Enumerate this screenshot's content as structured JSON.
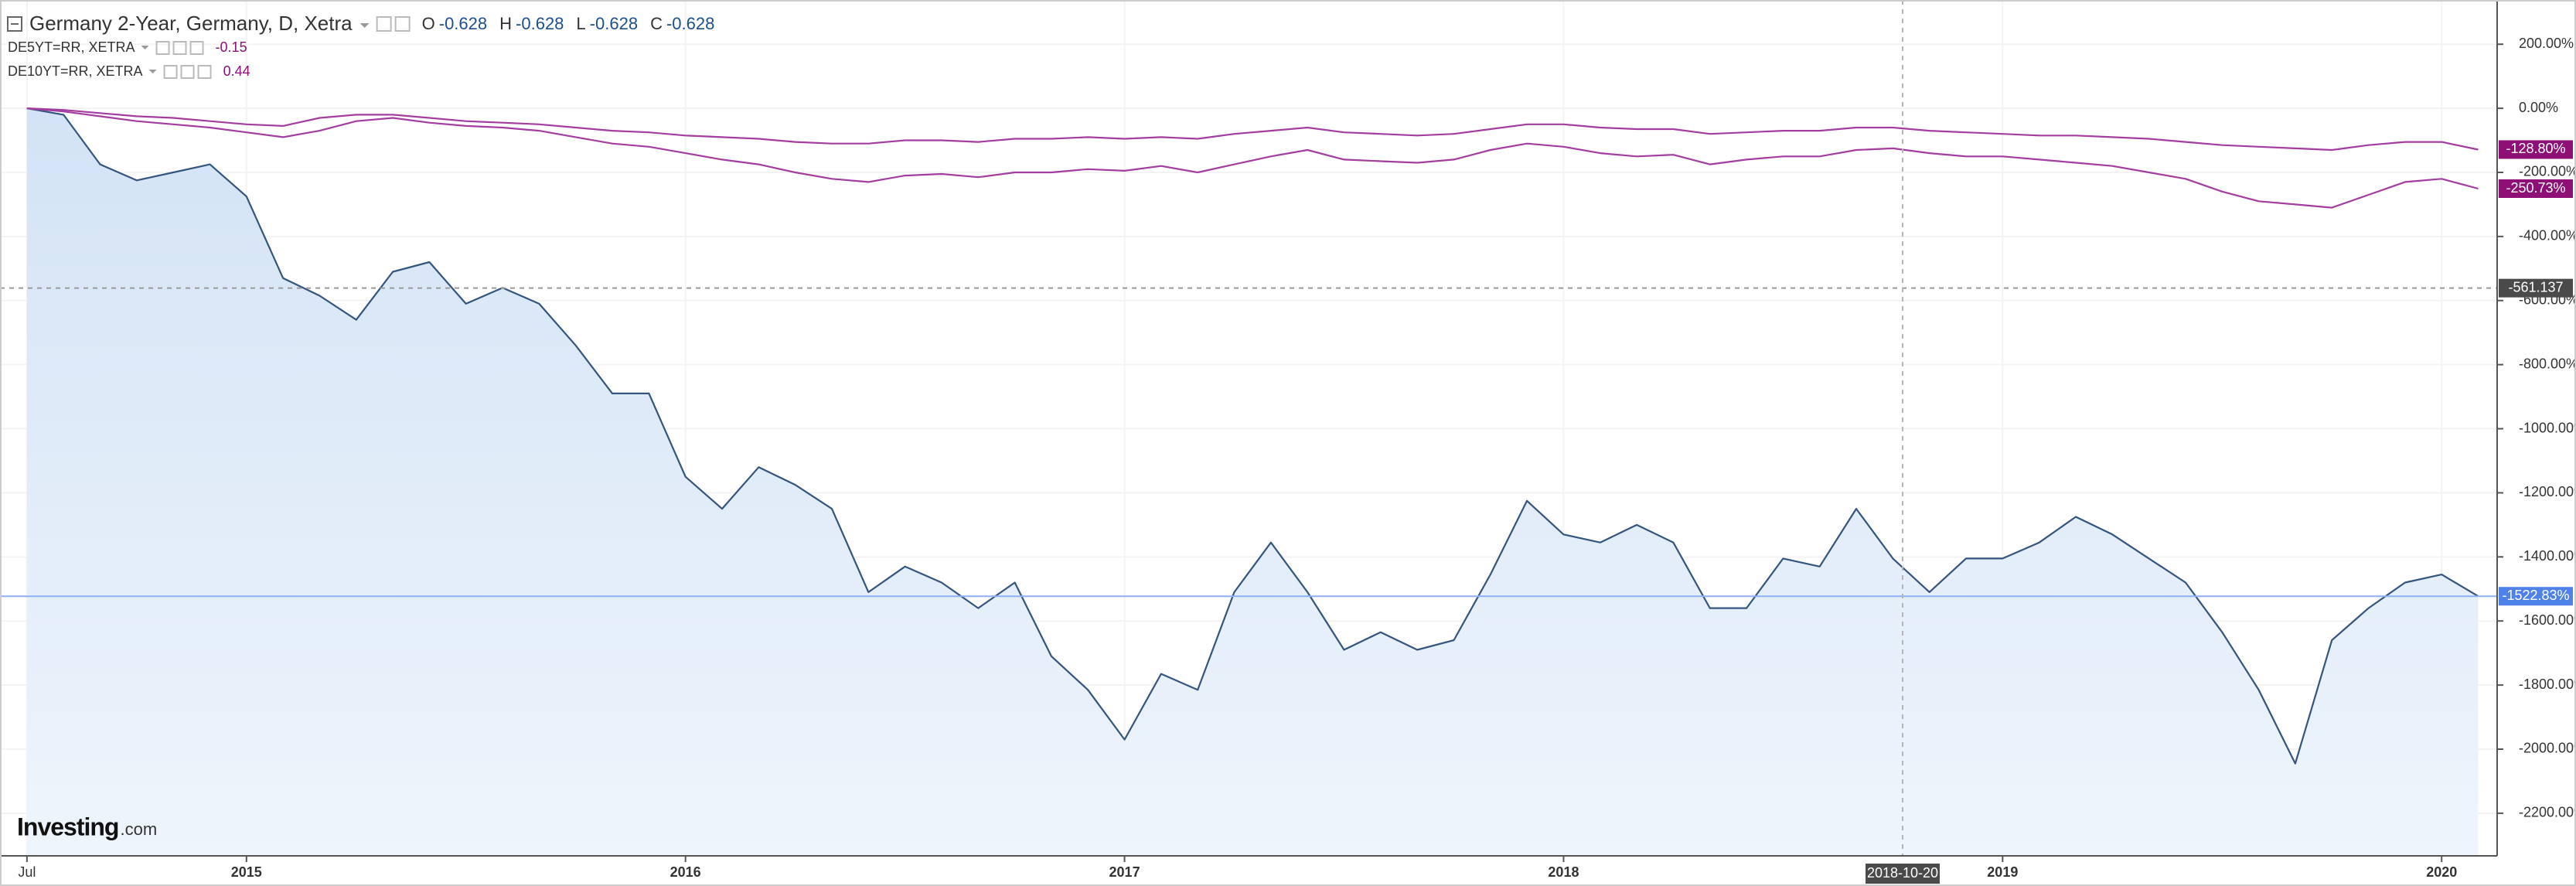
{
  "chart_data": {
    "type": "line",
    "header": {
      "title": "Germany 2-Year, Germany, D, Xetra",
      "ohlc": [
        {
          "label": "O",
          "value": -0.628
        },
        {
          "label": "H",
          "value": -0.628
        },
        {
          "label": "L",
          "value": -0.628
        },
        {
          "label": "C",
          "value": -0.628
        }
      ]
    },
    "logo": [
      "Investing",
      ".com"
    ],
    "categories": [
      "Jul",
      null,
      null,
      null,
      null,
      null,
      "2015",
      null,
      null,
      null,
      null,
      null,
      null,
      null,
      null,
      null,
      null,
      null,
      "2016",
      null,
      null,
      null,
      null,
      null,
      null,
      null,
      null,
      null,
      null,
      null,
      "2017",
      null,
      null,
      null,
      null,
      null,
      null,
      null,
      null,
      null,
      null,
      null,
      "2018",
      null,
      null,
      null,
      null,
      null,
      null,
      null,
      null,
      null,
      null,
      null,
      "2019",
      null,
      null,
      null,
      null,
      null,
      null,
      null,
      null,
      null,
      null,
      null,
      "2020",
      null
    ],
    "ylim": [
      -2333,
      338
    ],
    "yticks": [
      {
        "value": 200,
        "label": "200.00%"
      },
      {
        "value": 0,
        "label": "0.00%"
      },
      {
        "value": -200,
        "label": "-200.00%"
      },
      {
        "value": -400,
        "label": "-400.00%"
      },
      {
        "value": -600,
        "label": "-600.00%"
      },
      {
        "value": -800,
        "label": "-800.00%"
      },
      {
        "value": -1000,
        "label": "-1000.00%"
      },
      {
        "value": -1200,
        "label": "-1200.00%"
      },
      {
        "value": -1400,
        "label": "-1400.00%"
      },
      {
        "value": -1600,
        "label": "-1600.00%"
      },
      {
        "value": -1800,
        "label": "-1800.00%"
      },
      {
        "value": -2000,
        "label": "-2000.00%"
      },
      {
        "value": -2200,
        "label": "-2200.00%"
      }
    ],
    "grid": true,
    "crosshair": {
      "x_label": "2018-10-20",
      "y": -561.137
    },
    "series": [
      {
        "name": "Germany 2-Year, Germany, D, Xetra",
        "color": "#33557e",
        "fill": "#e2edf9",
        "last_label": "-1522.83%",
        "label_color": "#4f82e8",
        "values": [
          0,
          -20,
          -175,
          -225,
          -200,
          -175,
          -275,
          -530,
          -585,
          -660,
          -510,
          -480,
          -610,
          -560,
          -610,
          -740,
          -890,
          -890,
          -1150,
          -1250,
          -1120,
          -1175,
          -1250,
          -1510,
          -1430,
          -1480,
          -1560,
          -1480,
          -1710,
          -1815,
          -1970,
          -1765,
          -1815,
          -1510,
          -1355,
          -1510,
          -1690,
          -1635,
          -1690,
          -1660,
          -1455,
          -1225,
          -1330,
          -1355,
          -1300,
          -1355,
          -1560,
          -1560,
          -1405,
          -1430,
          -1250,
          -1405,
          -1510,
          -1405,
          -1405,
          -1355,
          -1275,
          -1330,
          -1405,
          -1480,
          -1635,
          -1815,
          -2045,
          -1660,
          -1560,
          -1480,
          -1455,
          -1522.83
        ]
      },
      {
        "name": "DE5YT=RR, XETRA",
        "color": "#a33da0",
        "legend_value": -0.15,
        "last_label": "-250.73%",
        "label_color": "#8e0f76",
        "values": [
          0,
          -10,
          -25,
          -40,
          -50,
          -60,
          -75,
          -90,
          -70,
          -40,
          -30,
          -45,
          -55,
          -60,
          -70,
          -90,
          -110,
          -120,
          -140,
          -160,
          -175,
          -200,
          -220,
          -230,
          -210,
          -205,
          -215,
          -200,
          -200,
          -190,
          -195,
          -180,
          -200,
          -175,
          -150,
          -130,
          -160,
          -165,
          -170,
          -160,
          -130,
          -110,
          -120,
          -140,
          -150,
          -145,
          -175,
          -160,
          -150,
          -150,
          -130,
          -125,
          -140,
          -150,
          -150,
          -160,
          -170,
          -180,
          -200,
          -220,
          -260,
          -290,
          -300,
          -310,
          -270,
          -230,
          -220,
          -250.73
        ]
      },
      {
        "name": "DE10YT=RR, XETRA",
        "color": "#a33da0",
        "legend_value": 0.44,
        "last_label": "-128.80%",
        "label_color": "#8e0f76",
        "values": [
          0,
          -5,
          -15,
          -25,
          -30,
          -40,
          -50,
          -55,
          -30,
          -20,
          -20,
          -30,
          -40,
          -45,
          -50,
          -60,
          -70,
          -75,
          -85,
          -90,
          -95,
          -105,
          -110,
          -110,
          -100,
          -100,
          -105,
          -95,
          -95,
          -90,
          -95,
          -90,
          -95,
          -80,
          -70,
          -60,
          -75,
          -80,
          -85,
          -80,
          -65,
          -50,
          -50,
          -60,
          -65,
          -65,
          -80,
          -75,
          -70,
          -70,
          -60,
          -60,
          -70,
          -75,
          -80,
          -85,
          -85,
          -90,
          -95,
          -105,
          -115,
          -120,
          -125,
          -130,
          -115,
          -105,
          -105,
          -128.8
        ]
      }
    ]
  }
}
